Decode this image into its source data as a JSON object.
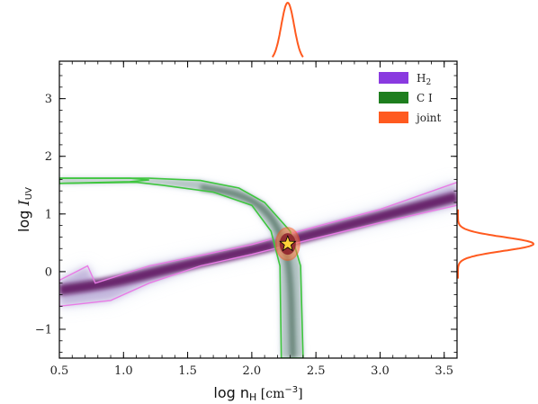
{
  "chart_data": {
    "type": "contour",
    "xlabel_prefix": "log n",
    "xlabel_sub": "H",
    "xlabel_units": " [cm",
    "xlabel_sup": "−3",
    "xlabel_close": "]",
    "ylabel_prefix": "log ",
    "ylabel_italic": "I",
    "ylabel_sub": "UV",
    "xlim": [
      0.5,
      3.6
    ],
    "ylim": [
      -1.5,
      3.65
    ],
    "xticks": [
      0.5,
      1.0,
      1.5,
      2.0,
      2.5,
      3.0,
      3.5
    ],
    "xtick_labels": [
      "0.5",
      "1.0",
      "1.5",
      "2.0",
      "2.5",
      "3.0",
      "3.5"
    ],
    "yticks": [
      -1,
      0,
      1,
      2,
      3
    ],
    "ytick_labels": [
      "−1",
      "0",
      "1",
      "2",
      "3"
    ],
    "legend_position": "top-right",
    "legend": [
      {
        "label": "H",
        "sub": "2",
        "color": "#8a3ae0"
      },
      {
        "label": "C I",
        "sub": "",
        "color": "#1e7e1e"
      },
      {
        "label": "joint",
        "sub": "",
        "color": "#ff5a1f"
      }
    ],
    "best_fit": {
      "x": 2.28,
      "y": 0.48
    },
    "marginal_x": {
      "center": 2.28,
      "sigma": 0.05
    },
    "marginal_y": {
      "center": 0.48,
      "sigma": 0.12
    },
    "series": [
      {
        "name": "H2",
        "color": "#6b0f6b",
        "contour_color": "#e97be6",
        "lower": [
          [
            0.5,
            -0.6
          ],
          [
            0.9,
            -0.5
          ],
          [
            1.2,
            -0.2
          ],
          [
            1.6,
            0.1
          ],
          [
            2.0,
            0.3
          ],
          [
            2.5,
            0.58
          ],
          [
            3.0,
            0.85
          ],
          [
            3.6,
            1.15
          ]
        ],
        "upper": [
          [
            0.5,
            -0.15
          ],
          [
            0.72,
            0.1
          ],
          [
            0.78,
            -0.2
          ],
          [
            1.2,
            0.1
          ],
          [
            1.6,
            0.28
          ],
          [
            2.0,
            0.47
          ],
          [
            2.5,
            0.78
          ],
          [
            3.0,
            1.08
          ],
          [
            3.6,
            1.55
          ]
        ]
      },
      {
        "name": "C I",
        "color": "#2f7a3a",
        "contour_color": "#3ec63e",
        "upper": [
          [
            0.5,
            1.62
          ],
          [
            1.2,
            1.62
          ],
          [
            1.6,
            1.58
          ],
          [
            1.9,
            1.45
          ],
          [
            2.1,
            1.2
          ],
          [
            2.3,
            0.7
          ],
          [
            2.38,
            0.1
          ],
          [
            2.4,
            -1.5
          ]
        ],
        "lower": [
          [
            0.5,
            1.53
          ],
          [
            1.1,
            1.55
          ],
          [
            1.3,
            1.5
          ],
          [
            1.7,
            1.38
          ],
          [
            2.0,
            1.15
          ],
          [
            2.15,
            0.7
          ],
          [
            2.22,
            0.1
          ],
          [
            2.23,
            -1.5
          ]
        ]
      }
    ]
  }
}
